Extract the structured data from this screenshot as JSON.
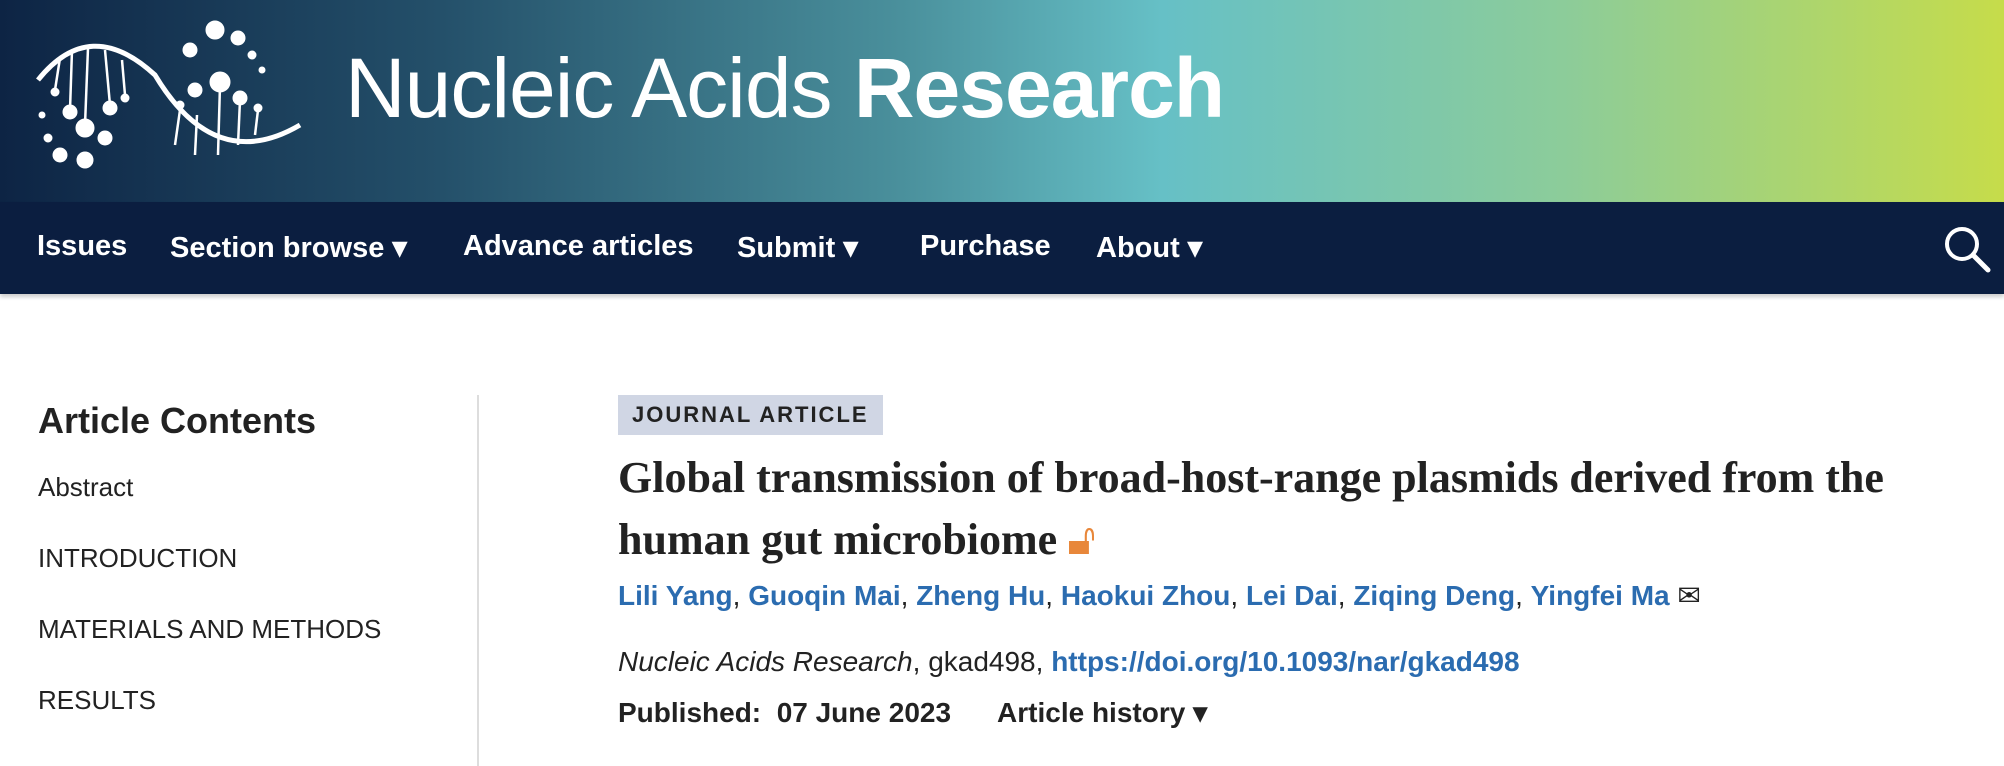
{
  "header": {
    "journal_light": "Nucleic Acids ",
    "journal_bold": "Research"
  },
  "nav": {
    "items": [
      "Issues",
      "Section browse ▾",
      "Advance articles",
      "Submit ▾",
      "Purchase",
      "About ▾"
    ],
    "search_icon": "search-icon"
  },
  "sidebar": {
    "title": "Article Contents",
    "items": [
      "Abstract",
      "INTRODUCTION",
      "MATERIALS AND METHODS",
      "RESULTS"
    ]
  },
  "article": {
    "type": "JOURNAL ARTICLE",
    "title": "Global transmission of broad-host-range plasmids derived from the human gut microbiome",
    "open_access_icon": "open-access-icon",
    "authors": [
      "Lili Yang",
      "Guoqin Mai",
      "Zheng Hu",
      "Haokui Zhou",
      "Lei Dai",
      "Ziqing Deng",
      "Yingfei Ma"
    ],
    "journal": "Nucleic Acids Research",
    "article_id": ", gkad498, ",
    "doi": "https://doi.org/10.1093/nar/gkad498",
    "published_label": "Published:",
    "published_date": "07 June 2023",
    "history_label": "Article history ▾"
  },
  "colors": {
    "nav_bg": "#0b1e40",
    "link": "#2b6cb0",
    "oa": "#e8873a",
    "badge_bg": "#d0d6e4"
  }
}
